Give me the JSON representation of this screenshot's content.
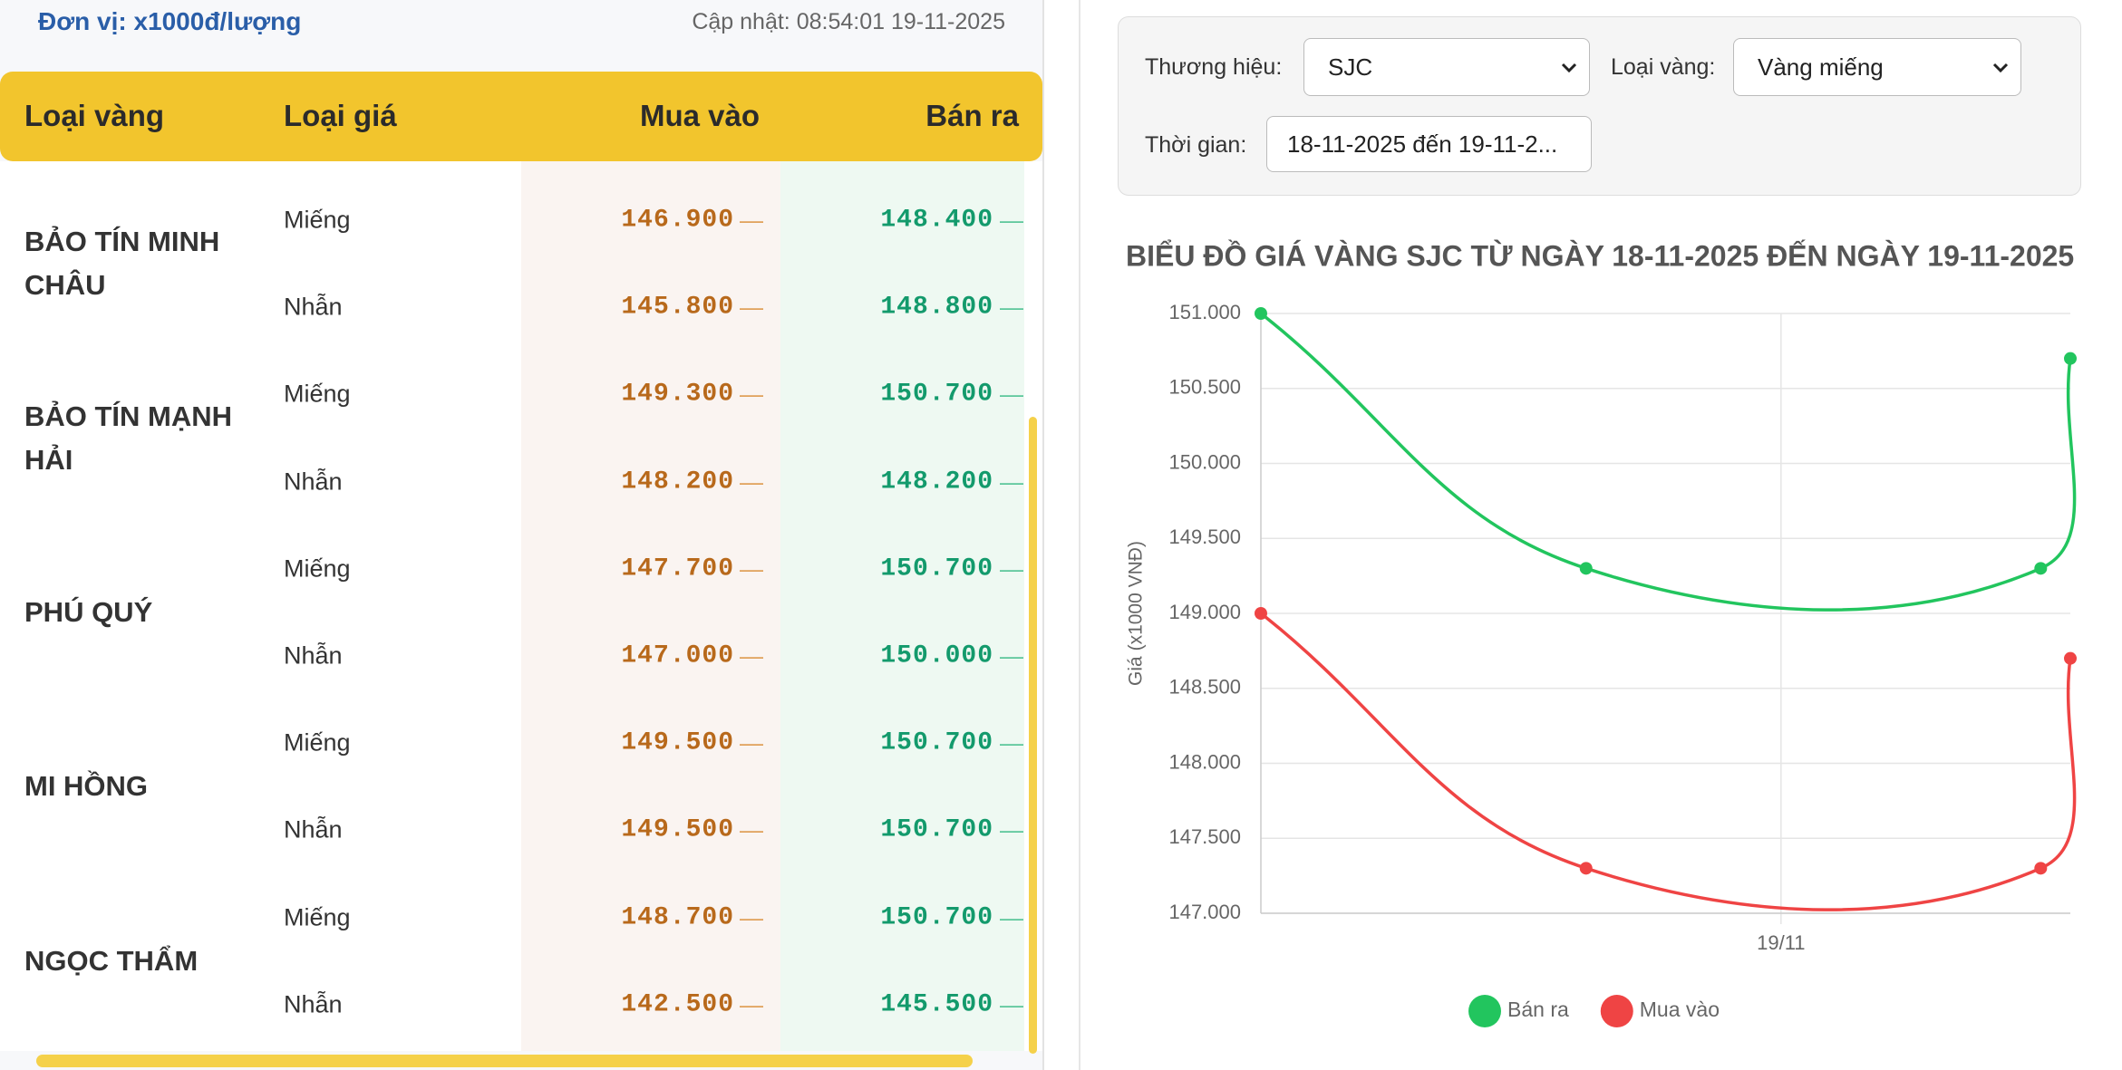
{
  "header": {
    "unit": "Đơn vị: x1000đ/lượng",
    "updated": "Cập nhật: 08:54:01 19-11-2025"
  },
  "table": {
    "columns": [
      "Loại vàng",
      "Loại giá",
      "Mua vào",
      "Bán ra"
    ],
    "groups": [
      {
        "brand": "BẢO TÍN MINH CHÂU",
        "rows": [
          {
            "type": "Miếng",
            "buy": "146.900",
            "buy_change": "—",
            "sell": "148.400",
            "sell_change": "—"
          },
          {
            "type": "Nhẫn",
            "buy": "145.800",
            "buy_change": "—",
            "sell": "148.800",
            "sell_change": "—"
          }
        ]
      },
      {
        "brand": "BẢO TÍN MẠNH HẢI",
        "rows": [
          {
            "type": "Miếng",
            "buy": "149.300",
            "buy_change": "—",
            "sell": "150.700",
            "sell_change": "—"
          },
          {
            "type": "Nhẫn",
            "buy": "148.200",
            "buy_change": "—",
            "sell": "148.200",
            "sell_change": "—"
          }
        ]
      },
      {
        "brand": "PHÚ QUÝ",
        "rows": [
          {
            "type": "Miếng",
            "buy": "147.700",
            "buy_change": "—",
            "sell": "150.700",
            "sell_change": "—"
          },
          {
            "type": "Nhẫn",
            "buy": "147.000",
            "buy_change": "—",
            "sell": "150.000",
            "sell_change": "—"
          }
        ]
      },
      {
        "brand": "MI HỒNG",
        "rows": [
          {
            "type": "Miếng",
            "buy": "149.500",
            "buy_change": "—",
            "sell": "150.700",
            "sell_change": "—"
          },
          {
            "type": "Nhẫn",
            "buy": "149.500",
            "buy_change": "—",
            "sell": "150.700",
            "sell_change": "—"
          }
        ]
      },
      {
        "brand": "NGỌC THẨM",
        "rows": [
          {
            "type": "Miếng",
            "buy": "148.700",
            "buy_change": "—",
            "sell": "150.700",
            "sell_change": "—"
          },
          {
            "type": "Nhẫn",
            "buy": "142.500",
            "buy_change": "—",
            "sell": "145.500",
            "sell_change": "—"
          }
        ]
      }
    ]
  },
  "filters": {
    "brand_label": "Thương hiệu:",
    "brand_value": "SJC",
    "type_label": "Loại vàng:",
    "type_value": "Vàng miếng",
    "time_label": "Thời gian:",
    "time_value": "18-11-2025 đến 19-11-2..."
  },
  "chart_data": {
    "type": "line",
    "title": "BIỂU ĐỒ GIÁ VÀNG SJC TỪ NGÀY 18-11-2025 ĐẾN NGÀY 19-11-2025",
    "y_label": "Giá (x1000 VNĐ)",
    "x": [
      18.333,
      18.75,
      19.333,
      19.371
    ],
    "xlim": [
      18.333,
      19.371
    ],
    "xticks": [
      {
        "value": 19,
        "label": "19/11"
      }
    ],
    "ylim": [
      147,
      151
    ],
    "yticks": [
      {
        "value": 147,
        "label": "147.000"
      },
      {
        "value": 147.5,
        "label": "147.500"
      },
      {
        "value": 148,
        "label": "148.000"
      },
      {
        "value": 148.5,
        "label": "148.500"
      },
      {
        "value": 149,
        "label": "149.000"
      },
      {
        "value": 149.5,
        "label": "149.500"
      },
      {
        "value": 150,
        "label": "150.000"
      },
      {
        "value": 150.5,
        "label": "150.500"
      },
      {
        "value": 151,
        "label": "151.000"
      }
    ],
    "grid": true,
    "legend": "bottom",
    "series": [
      {
        "name": "Bán ra",
        "color": "#22c55e",
        "values": [
          151,
          149.3,
          149.3,
          150.7
        ]
      },
      {
        "name": "Mua vào",
        "color": "#ef4444",
        "values": [
          149,
          147.3,
          147.3,
          148.7
        ]
      }
    ]
  }
}
